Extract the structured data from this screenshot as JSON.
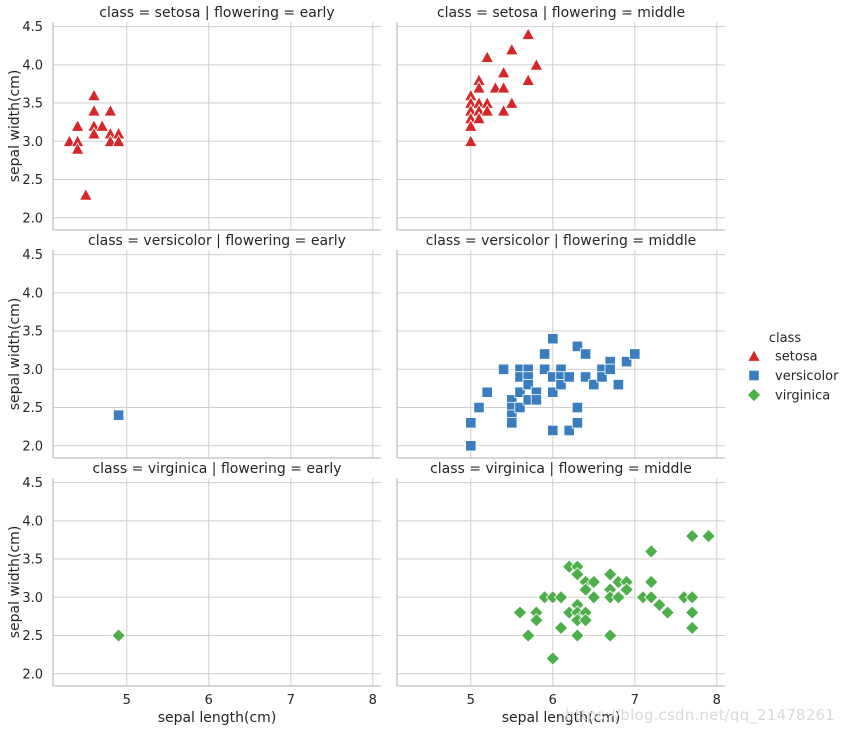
{
  "chart_data": {
    "type": "scatter",
    "facet_row": "class",
    "facet_col": "flowering",
    "xlabel": "sepal length(cm)",
    "ylabel": "sepal width(cm)",
    "xlim": [
      4.1,
      8.1
    ],
    "ylim": [
      1.84,
      4.56
    ],
    "xticks": [
      5,
      6,
      7,
      8
    ],
    "yticks": [
      2.0,
      2.5,
      3.0,
      3.5,
      4.0,
      4.5
    ],
    "grid": true,
    "legend": {
      "title": "class",
      "placement": "right",
      "entries": [
        {
          "label": "setosa",
          "marker": "triangle",
          "color": "#d62728"
        },
        {
          "label": "versicolor",
          "marker": "square",
          "color": "#3a7ebf"
        },
        {
          "label": "virginica",
          "marker": "diamond",
          "color": "#4daf4a"
        }
      ]
    },
    "panels": [
      {
        "title": "class = setosa | flowering = early",
        "series": "setosa",
        "points": [
          [
            4.3,
            3.0
          ],
          [
            4.4,
            3.0
          ],
          [
            4.4,
            3.2
          ],
          [
            4.4,
            2.9
          ],
          [
            4.5,
            2.3
          ],
          [
            4.6,
            3.6
          ],
          [
            4.6,
            3.4
          ],
          [
            4.6,
            3.2
          ],
          [
            4.6,
            3.1
          ],
          [
            4.7,
            3.2
          ],
          [
            4.8,
            3.4
          ],
          [
            4.8,
            3.1
          ],
          [
            4.8,
            3.0
          ],
          [
            4.9,
            3.1
          ],
          [
            4.9,
            3.0
          ]
        ]
      },
      {
        "title": "class = setosa | flowering = middle",
        "series": "setosa",
        "points": [
          [
            5.0,
            3.6
          ],
          [
            5.0,
            3.5
          ],
          [
            5.0,
            3.4
          ],
          [
            5.0,
            3.3
          ],
          [
            5.0,
            3.2
          ],
          [
            5.0,
            3.0
          ],
          [
            5.1,
            3.8
          ],
          [
            5.1,
            3.7
          ],
          [
            5.1,
            3.5
          ],
          [
            5.1,
            3.4
          ],
          [
            5.1,
            3.3
          ],
          [
            5.2,
            4.1
          ],
          [
            5.2,
            3.5
          ],
          [
            5.2,
            3.4
          ],
          [
            5.3,
            3.7
          ],
          [
            5.4,
            3.9
          ],
          [
            5.4,
            3.7
          ],
          [
            5.4,
            3.4
          ],
          [
            5.5,
            4.2
          ],
          [
            5.5,
            3.5
          ],
          [
            5.7,
            4.4
          ],
          [
            5.7,
            3.8
          ],
          [
            5.8,
            4.0
          ]
        ]
      },
      {
        "title": "class = versicolor | flowering = early",
        "series": "versicolor",
        "points": [
          [
            4.9,
            2.4
          ]
        ]
      },
      {
        "title": "class = versicolor | flowering = middle",
        "series": "versicolor",
        "points": [
          [
            5.0,
            2.3
          ],
          [
            5.0,
            2.0
          ],
          [
            5.1,
            2.5
          ],
          [
            5.2,
            2.7
          ],
          [
            5.4,
            3.0
          ],
          [
            5.5,
            2.6
          ],
          [
            5.5,
            2.5
          ],
          [
            5.5,
            2.4
          ],
          [
            5.5,
            2.3
          ],
          [
            5.6,
            3.0
          ],
          [
            5.6,
            2.9
          ],
          [
            5.6,
            2.7
          ],
          [
            5.6,
            2.5
          ],
          [
            5.7,
            3.0
          ],
          [
            5.7,
            2.9
          ],
          [
            5.7,
            2.8
          ],
          [
            5.7,
            2.6
          ],
          [
            5.8,
            2.7
          ],
          [
            5.8,
            2.6
          ],
          [
            5.9,
            3.2
          ],
          [
            5.9,
            3.0
          ],
          [
            6.0,
            3.4
          ],
          [
            6.0,
            2.9
          ],
          [
            6.0,
            2.7
          ],
          [
            6.0,
            2.2
          ],
          [
            6.1,
            3.0
          ],
          [
            6.1,
            2.9
          ],
          [
            6.1,
            2.8
          ],
          [
            6.2,
            2.9
          ],
          [
            6.2,
            2.2
          ],
          [
            6.3,
            3.3
          ],
          [
            6.3,
            2.5
          ],
          [
            6.3,
            2.3
          ],
          [
            6.4,
            3.2
          ],
          [
            6.4,
            2.9
          ],
          [
            6.5,
            2.8
          ],
          [
            6.6,
            3.0
          ],
          [
            6.6,
            2.9
          ],
          [
            6.7,
            3.1
          ],
          [
            6.7,
            3.0
          ],
          [
            6.8,
            2.8
          ],
          [
            6.9,
            3.1
          ],
          [
            7.0,
            3.2
          ]
        ]
      },
      {
        "title": "class = virginica | flowering = early",
        "series": "virginica",
        "points": [
          [
            4.9,
            2.5
          ]
        ]
      },
      {
        "title": "class = virginica | flowering = middle",
        "series": "virginica",
        "points": [
          [
            5.6,
            2.8
          ],
          [
            5.7,
            2.5
          ],
          [
            5.8,
            2.8
          ],
          [
            5.8,
            2.7
          ],
          [
            5.9,
            3.0
          ],
          [
            6.0,
            3.0
          ],
          [
            6.0,
            2.2
          ],
          [
            6.1,
            3.0
          ],
          [
            6.1,
            2.6
          ],
          [
            6.2,
            3.4
          ],
          [
            6.2,
            2.8
          ],
          [
            6.3,
            3.4
          ],
          [
            6.3,
            3.3
          ],
          [
            6.3,
            2.9
          ],
          [
            6.3,
            2.8
          ],
          [
            6.3,
            2.7
          ],
          [
            6.3,
            2.5
          ],
          [
            6.4,
            3.2
          ],
          [
            6.4,
            3.1
          ],
          [
            6.4,
            2.8
          ],
          [
            6.4,
            2.7
          ],
          [
            6.5,
            3.2
          ],
          [
            6.5,
            3.0
          ],
          [
            6.7,
            3.3
          ],
          [
            6.7,
            3.1
          ],
          [
            6.7,
            3.0
          ],
          [
            6.7,
            2.5
          ],
          [
            6.8,
            3.2
          ],
          [
            6.8,
            3.0
          ],
          [
            6.9,
            3.2
          ],
          [
            6.9,
            3.1
          ],
          [
            7.1,
            3.0
          ],
          [
            7.2,
            3.6
          ],
          [
            7.2,
            3.2
          ],
          [
            7.2,
            3.0
          ],
          [
            7.3,
            2.9
          ],
          [
            7.4,
            2.8
          ],
          [
            7.6,
            3.0
          ],
          [
            7.7,
            3.8
          ],
          [
            7.7,
            3.0
          ],
          [
            7.7,
            2.8
          ],
          [
            7.7,
            2.6
          ],
          [
            7.9,
            3.8
          ]
        ]
      }
    ]
  },
  "watermark": "https://blog.csdn.net/qq_21478261"
}
